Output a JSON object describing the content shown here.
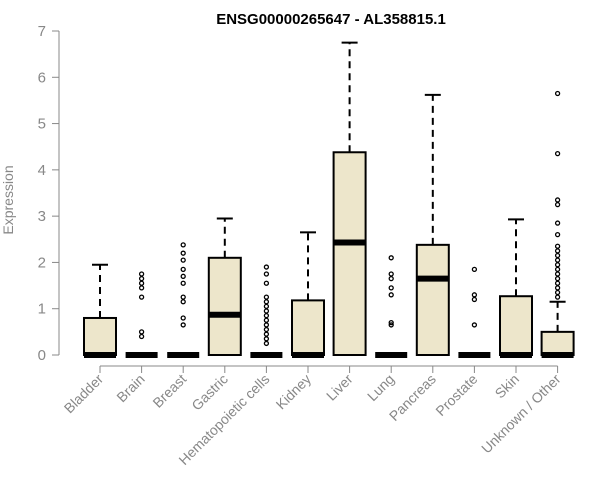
{
  "chart_data": {
    "type": "boxplot",
    "title": "ENSG00000265647 - AL358815.1",
    "ylabel": "Expression",
    "ylim": [
      0,
      7
    ],
    "yticks": [
      0,
      1,
      2,
      3,
      4,
      5,
      6,
      7
    ],
    "colors": {
      "box_fill": "#ede6cb",
      "stroke": "#000000",
      "axis": "#888888"
    },
    "categories": [
      "Bladder",
      "Brain",
      "Breast",
      "Gastric",
      "Hematopoietic cells",
      "Kidney",
      "Liver",
      "Lung",
      "Pancreas",
      "Prostate",
      "Skin",
      "Unknown / Other"
    ],
    "boxes": [
      {
        "name": "Bladder",
        "q1": 0,
        "median": 0,
        "q3": 0.8,
        "whisker_low": 0,
        "whisker_high": 1.95,
        "outliers": []
      },
      {
        "name": "Brain",
        "q1": 0,
        "median": 0,
        "q3": 0,
        "whisker_low": 0,
        "whisker_high": 0,
        "outliers": [
          0.4,
          0.5,
          1.25,
          1.45,
          1.55,
          1.65,
          1.75
        ]
      },
      {
        "name": "Breast",
        "q1": 0,
        "median": 0,
        "q3": 0,
        "whisker_low": 0,
        "whisker_high": 0,
        "outliers": [
          0.65,
          0.8,
          1.15,
          1.25,
          1.55,
          1.7,
          1.85,
          2.05,
          2.2,
          2.38
        ]
      },
      {
        "name": "Gastric",
        "q1": 0,
        "median": 0.87,
        "q3": 2.1,
        "whisker_low": 0,
        "whisker_high": 2.95,
        "outliers": []
      },
      {
        "name": "Hematopoietic cells",
        "q1": 0,
        "median": 0,
        "q3": 0,
        "whisker_low": 0,
        "whisker_high": 0,
        "outliers": [
          0.25,
          0.35,
          0.45,
          0.55,
          0.65,
          0.75,
          0.85,
          0.95,
          1.05,
          1.15,
          1.25,
          1.55,
          1.75,
          1.9
        ]
      },
      {
        "name": "Kidney",
        "q1": 0,
        "median": 0,
        "q3": 1.18,
        "whisker_low": 0,
        "whisker_high": 2.65,
        "outliers": []
      },
      {
        "name": "Liver",
        "q1": 0,
        "median": 2.43,
        "q3": 4.38,
        "whisker_low": 0,
        "whisker_high": 6.75,
        "outliers": []
      },
      {
        "name": "Lung",
        "q1": 0,
        "median": 0,
        "q3": 0,
        "whisker_low": 0,
        "whisker_high": 0,
        "outliers": [
          0.65,
          0.7,
          1.3,
          1.45,
          1.65,
          1.75,
          2.1
        ]
      },
      {
        "name": "Pancreas",
        "q1": 0,
        "median": 1.65,
        "q3": 2.38,
        "whisker_low": 0,
        "whisker_high": 5.62,
        "outliers": []
      },
      {
        "name": "Prostate",
        "q1": 0,
        "median": 0,
        "q3": 0,
        "whisker_low": 0,
        "whisker_high": 0,
        "outliers": [
          0.65,
          1.2,
          1.3,
          1.85
        ]
      },
      {
        "name": "Skin",
        "q1": 0,
        "median": 0,
        "q3": 1.27,
        "whisker_low": 0,
        "whisker_high": 2.93,
        "outliers": []
      },
      {
        "name": "Unknown / Other",
        "q1": 0,
        "median": 0,
        "q3": 0.5,
        "whisker_low": 0,
        "whisker_high": 1.15,
        "outliers": [
          1.25,
          1.35,
          1.45,
          1.55,
          1.65,
          1.75,
          1.85,
          1.95,
          2.05,
          2.15,
          2.25,
          2.35,
          2.6,
          2.85,
          3.25,
          3.35,
          4.35,
          5.65
        ]
      }
    ]
  }
}
